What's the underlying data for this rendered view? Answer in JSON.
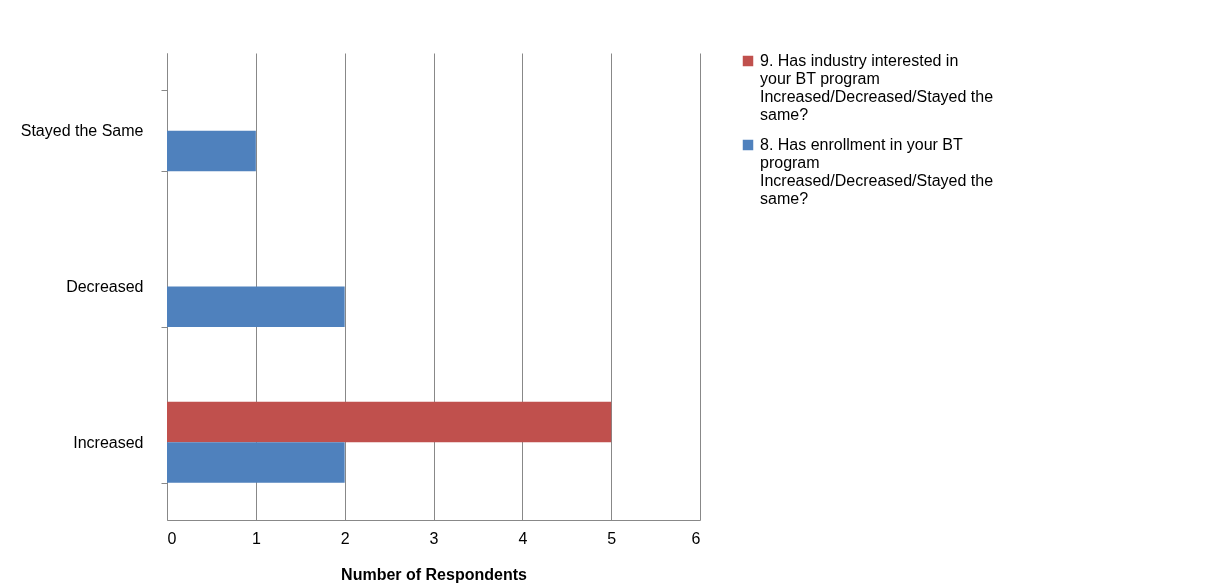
{
  "chart_data": {
    "type": "bar",
    "orientation": "horizontal",
    "xlabel": "Number of Respondents",
    "categories": [
      "Stayed the Same",
      "Decreased",
      "Increased"
    ],
    "series": [
      {
        "name": "9. Has industry interested in your BT program Increased/Decreased/Stayed the same?",
        "color": "#c0504d",
        "values": [
          null,
          null,
          5
        ]
      },
      {
        "name": "8. Has enrollment in your BT program Increased/Decreased/Stayed the same?",
        "color": "#4f81bd",
        "values": [
          1,
          2,
          2
        ]
      }
    ],
    "xlim": [
      0,
      6
    ],
    "xticks": [
      0,
      1,
      2,
      3,
      4,
      5,
      6
    ],
    "grid": "x",
    "legend": "right"
  }
}
